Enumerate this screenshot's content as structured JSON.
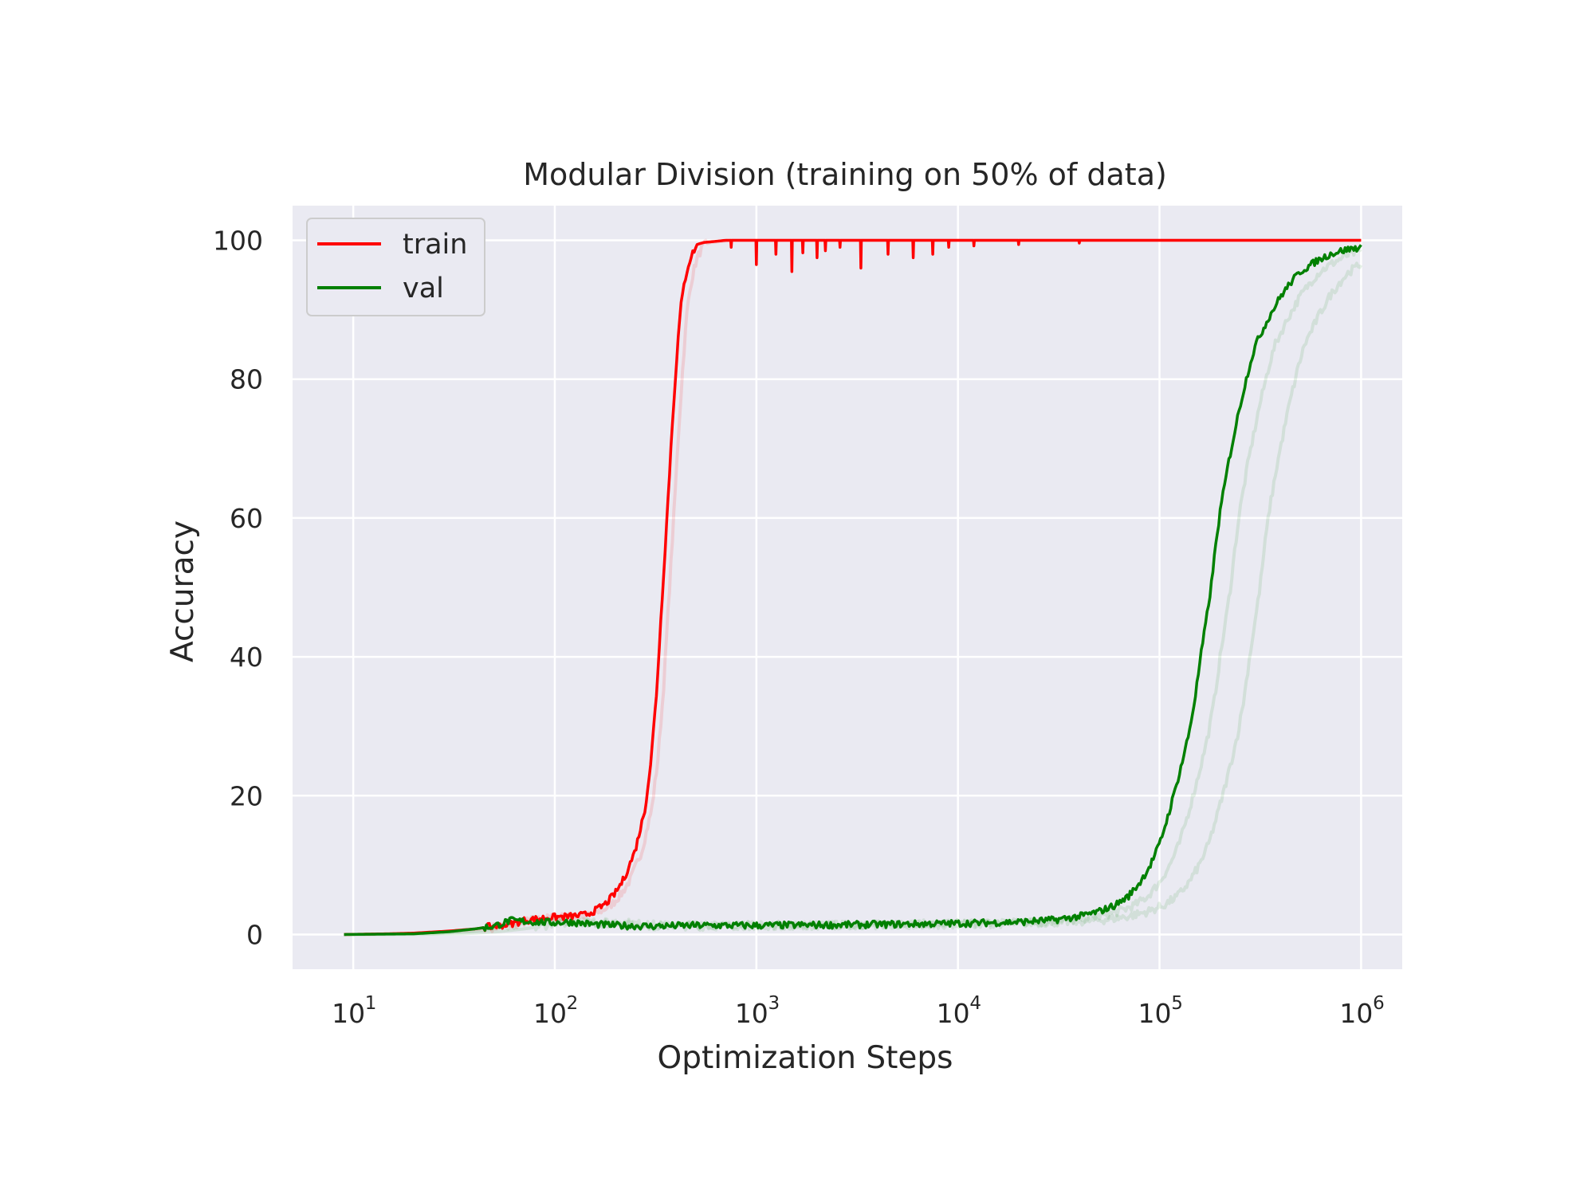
{
  "chart_data": {
    "type": "line",
    "title": "Modular Division (training on 50% of data)",
    "xlabel": "Optimization Steps",
    "ylabel": "Accuracy",
    "xscale": "log",
    "xlim": [
      5,
      1600000
    ],
    "ylim": [
      -5,
      105
    ],
    "grid": true,
    "legend_position": "upper-left",
    "x_ticks": [
      {
        "value": 10,
        "base": "10",
        "exp": "1"
      },
      {
        "value": 100,
        "base": "10",
        "exp": "2"
      },
      {
        "value": 1000,
        "base": "10",
        "exp": "3"
      },
      {
        "value": 10000,
        "base": "10",
        "exp": "4"
      },
      {
        "value": 100000,
        "base": "10",
        "exp": "5"
      },
      {
        "value": 1000000,
        "base": "10",
        "exp": "6"
      }
    ],
    "y_ticks": [
      {
        "value": 0,
        "label": "0"
      },
      {
        "value": 20,
        "label": "20"
      },
      {
        "value": 40,
        "label": "40"
      },
      {
        "value": 60,
        "label": "60"
      },
      {
        "value": 80,
        "label": "80"
      },
      {
        "value": 100,
        "label": "100"
      }
    ],
    "series": [
      {
        "name": "train",
        "color": "#ff0000",
        "x": [
          9,
          15,
          20,
          30,
          40,
          50,
          60,
          70,
          80,
          90,
          100,
          120,
          140,
          160,
          180,
          200,
          220,
          250,
          280,
          300,
          320,
          340,
          360,
          380,
          400,
          420,
          440,
          460,
          480,
          500,
          520,
          550,
          600,
          650,
          700,
          800,
          900,
          1000,
          1500,
          2000,
          3000,
          5000,
          10000,
          30000,
          100000,
          1000000
        ],
        "y": [
          0,
          0.1,
          0.2,
          0.5,
          0.8,
          1.2,
          1.5,
          2.0,
          2.2,
          2.4,
          2.5,
          2.6,
          2.8,
          3.5,
          4.5,
          6,
          8,
          12,
          18,
          25,
          35,
          48,
          60,
          72,
          82,
          90,
          94,
          96.5,
          98,
          99,
          99.5,
          99.7,
          99.8,
          99.9,
          100,
          100,
          100,
          100,
          100,
          100,
          100,
          100,
          100,
          100,
          100,
          100
        ],
        "dips": [
          {
            "x": 750,
            "y": 99
          },
          {
            "x": 1000,
            "y": 96.5
          },
          {
            "x": 1250,
            "y": 98
          },
          {
            "x": 1500,
            "y": 95.5
          },
          {
            "x": 1700,
            "y": 98.2
          },
          {
            "x": 2000,
            "y": 97.5
          },
          {
            "x": 2200,
            "y": 98.5
          },
          {
            "x": 2600,
            "y": 99
          },
          {
            "x": 3300,
            "y": 96
          },
          {
            "x": 4500,
            "y": 98
          },
          {
            "x": 6000,
            "y": 97.5
          },
          {
            "x": 7500,
            "y": 98
          },
          {
            "x": 9000,
            "y": 99
          },
          {
            "x": 12000,
            "y": 99.2
          },
          {
            "x": 20000,
            "y": 99.4
          },
          {
            "x": 40000,
            "y": 99.6
          }
        ]
      },
      {
        "name": "val",
        "color": "#008000",
        "x": [
          9,
          20,
          30,
          40,
          50,
          60,
          70,
          80,
          100,
          120,
          150,
          200,
          300,
          500,
          1000,
          3000,
          10000,
          20000,
          30000,
          40000,
          50000,
          60000,
          70000,
          80000,
          90000,
          100000,
          110000,
          120000,
          130000,
          140000,
          150000,
          160000,
          170000,
          180000,
          190000,
          200000,
          220000,
          250000,
          280000,
          300000,
          350000,
          400000,
          450000,
          500000,
          600000,
          700000,
          800000,
          900000,
          1000000
        ],
        "y": [
          0,
          0.1,
          0.4,
          0.8,
          1.2,
          2.0,
          1.9,
          1.8,
          1.7,
          1.8,
          1.5,
          1.3,
          1.2,
          1.3,
          1.3,
          1.4,
          1.6,
          1.8,
          2.1,
          2.6,
          3.3,
          4.2,
          5.5,
          7.5,
          10,
          13,
          17,
          21,
          25,
          29,
          34,
          40,
          45,
          50,
          56,
          61,
          68,
          76,
          82,
          85,
          89,
          92,
          94,
          95.5,
          97,
          98,
          98.5,
          98.8,
          99
        ]
      }
    ]
  }
}
